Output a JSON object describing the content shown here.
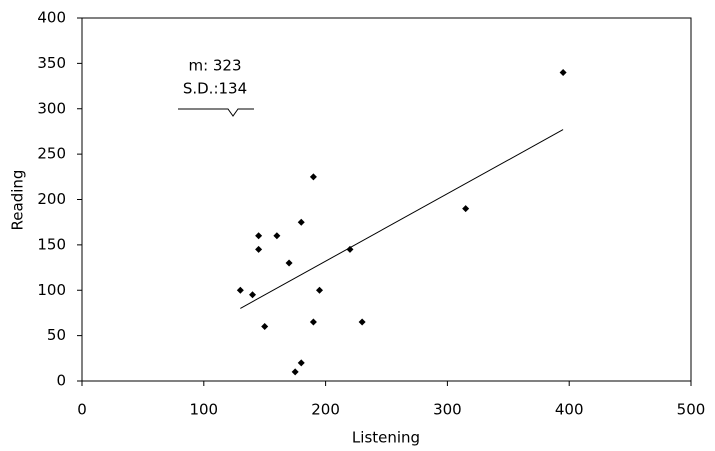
{
  "chart_data": {
    "type": "scatter",
    "x_label": "Listening",
    "y_label": "Reading",
    "series": [
      {
        "color": "#000000",
        "x": [
          130,
          140,
          145,
          145,
          150,
          160,
          170,
          175,
          180,
          180,
          190,
          190,
          195,
          220,
          230,
          315,
          395
        ],
        "values": [
          100,
          95,
          145,
          160,
          60,
          160,
          130,
          10,
          20,
          175,
          65,
          225,
          100,
          145,
          65,
          190,
          340
        ]
      }
    ],
    "trendline": {
      "x": [
        130,
        395
      ],
      "values": [
        80,
        277
      ],
      "color": "#000000"
    },
    "annotations": [
      "m: 323",
      "S.D.:134"
    ],
    "xlim": [
      0,
      500
    ],
    "xticks": [
      0,
      100,
      200,
      300,
      400,
      500
    ],
    "ylim": [
      0,
      400
    ],
    "yticks": [
      0,
      50,
      100,
      150,
      200,
      250,
      300,
      350,
      400
    ],
    "grid": false
  }
}
